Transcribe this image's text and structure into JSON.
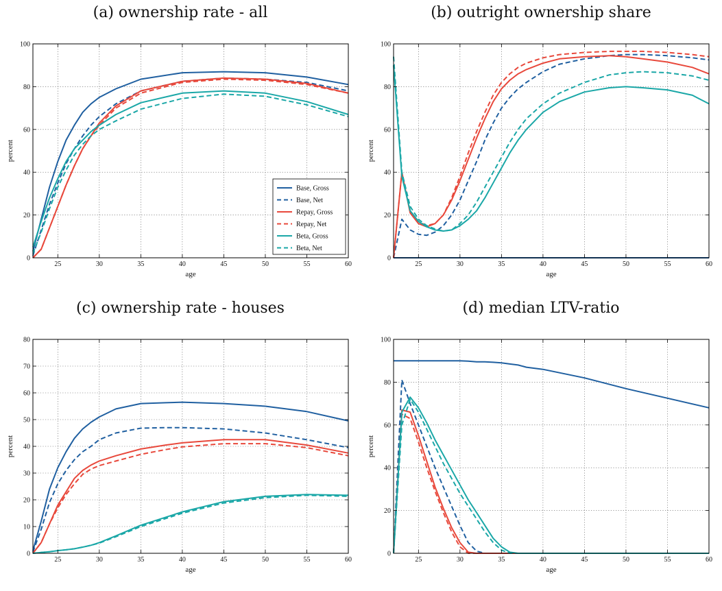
{
  "colors": {
    "base": "#1f5fa0",
    "repay": "#e8483b",
    "beta": "#1aa7a7"
  },
  "legend": [
    {
      "label": "Base, Gross",
      "color": "#1f5fa0",
      "dash": false
    },
    {
      "label": "Base, Net",
      "color": "#1f5fa0",
      "dash": true
    },
    {
      "label": "Repay, Gross",
      "color": "#e8483b",
      "dash": false
    },
    {
      "label": "Repay, Net",
      "color": "#e8483b",
      "dash": true
    },
    {
      "label": "Beta, Gross",
      "color": "#1aa7a7",
      "dash": false
    },
    {
      "label": "Beta, Net",
      "color": "#1aa7a7",
      "dash": true
    }
  ],
  "chart_data": [
    {
      "type": "line",
      "title": "(a) ownership rate - all",
      "xlabel": "age",
      "ylabel": "percent",
      "xlim": [
        22,
        60
      ],
      "ylim": [
        0,
        100
      ],
      "xticks": [
        25,
        30,
        35,
        40,
        45,
        50,
        55,
        60
      ],
      "yticks": [
        0,
        20,
        40,
        60,
        80,
        100
      ],
      "grid": true,
      "legend_position": "lower-right",
      "x": [
        22,
        23,
        24,
        25,
        26,
        27,
        28,
        29,
        30,
        32,
        35,
        40,
        45,
        50,
        55,
        60
      ],
      "series": [
        {
          "name": "Base, Gross",
          "color": "#1f5fa0",
          "dash": false,
          "values": [
            3,
            18,
            33,
            45,
            55,
            62,
            68,
            72,
            75,
            79,
            83.5,
            86.5,
            87,
            86.5,
            84.5,
            81
          ]
        },
        {
          "name": "Base, Net",
          "color": "#1f5fa0",
          "dash": true,
          "values": [
            1,
            13,
            25,
            35,
            44,
            51,
            57,
            62,
            66,
            72,
            78,
            82.5,
            84,
            83.5,
            82,
            78
          ]
        },
        {
          "name": "Repay, Gross",
          "color": "#e8483b",
          "dash": false,
          "values": [
            0,
            4,
            14,
            24,
            34,
            43,
            51,
            57,
            63,
            71,
            78,
            82.5,
            84,
            83.5,
            81.5,
            77
          ]
        },
        {
          "name": "Repay, Net",
          "color": "#e8483b",
          "dash": true,
          "values": [
            0,
            4,
            14,
            24,
            34,
            43,
            51,
            57,
            62,
            70,
            77,
            82,
            83.5,
            83,
            81,
            77
          ]
        },
        {
          "name": "Beta, Gross",
          "color": "#1aa7a7",
          "dash": false,
          "values": [
            5,
            17,
            28,
            37,
            45,
            51,
            55,
            59,
            62,
            67,
            72.5,
            77,
            78,
            77,
            73,
            67
          ]
        },
        {
          "name": "Beta, Net",
          "color": "#1aa7a7",
          "dash": true,
          "values": [
            2,
            12,
            23,
            33,
            41,
            48,
            53,
            57,
            60,
            64,
            69.5,
            74.5,
            76.5,
            75.5,
            71.5,
            66
          ]
        }
      ]
    },
    {
      "type": "line",
      "title": "(b) outright ownership share",
      "xlabel": "age",
      "ylabel": "percent",
      "xlim": [
        22,
        60
      ],
      "ylim": [
        0,
        100
      ],
      "xticks": [
        25,
        30,
        35,
        40,
        45,
        50,
        55,
        60
      ],
      "yticks": [
        0,
        20,
        40,
        60,
        80,
        100
      ],
      "grid": true,
      "legend_position": "none",
      "x": [
        22,
        23,
        24,
        25,
        26,
        27,
        28,
        29,
        30,
        31,
        32,
        33,
        34,
        35,
        36,
        37,
        38,
        40,
        42,
        45,
        48,
        50,
        52,
        55,
        58,
        60
      ],
      "series": [
        {
          "name": "Base, Gross",
          "color": "#1f5fa0",
          "dash": false,
          "values": [
            0,
            0,
            0,
            0,
            0,
            0,
            0,
            0,
            0,
            0,
            0,
            0,
            0,
            0,
            0,
            0,
            0,
            0,
            0,
            0,
            0,
            0,
            0,
            0,
            0,
            0
          ]
        },
        {
          "name": "Base, Net",
          "color": "#1f5fa0",
          "dash": true,
          "values": [
            0,
            18,
            13,
            11,
            10.5,
            12,
            15,
            20,
            27,
            36,
            45,
            55,
            63,
            70,
            75,
            79,
            82,
            87,
            90.5,
            93,
            94.5,
            95,
            95,
            94.5,
            93.5,
            92.5
          ]
        },
        {
          "name": "Repay, Gross",
          "color": "#e8483b",
          "dash": false,
          "values": [
            0,
            40,
            21,
            16,
            14.5,
            16,
            20,
            27,
            36,
            46,
            56,
            65,
            73,
            79,
            83,
            86,
            88,
            91,
            93,
            94,
            94.5,
            94,
            93,
            91.5,
            89,
            86
          ]
        },
        {
          "name": "Repay, Net",
          "color": "#e8483b",
          "dash": true,
          "values": [
            0,
            40,
            22,
            17,
            15,
            16,
            20,
            28,
            38,
            49,
            59,
            68,
            76,
            82,
            86,
            89,
            91,
            93.5,
            95,
            96,
            96.5,
            96.5,
            96.5,
            96,
            95,
            94
          ]
        },
        {
          "name": "Beta, Gross",
          "color": "#1aa7a7",
          "dash": false,
          "values": [
            90,
            38,
            22,
            17,
            14.5,
            13,
            12.5,
            13,
            15,
            18,
            22,
            28,
            35,
            42,
            49,
            55,
            60,
            68,
            73,
            77.5,
            79.5,
            80,
            79.5,
            78.5,
            76,
            72
          ]
        },
        {
          "name": "Beta, Net",
          "color": "#1aa7a7",
          "dash": true,
          "values": [
            94,
            40,
            24,
            18,
            15,
            13.5,
            12.5,
            13,
            16,
            20,
            26,
            33,
            40,
            47,
            54,
            60,
            65,
            72,
            77,
            82,
            85.5,
            86.5,
            87,
            86.5,
            85,
            83
          ]
        }
      ]
    },
    {
      "type": "line",
      "title": "(c) ownership rate - houses",
      "xlabel": "age",
      "ylabel": "percent",
      "xlim": [
        22,
        60
      ],
      "ylim": [
        0,
        80
      ],
      "xticks": [
        25,
        30,
        35,
        40,
        45,
        50,
        55,
        60
      ],
      "yticks": [
        0,
        10,
        20,
        30,
        40,
        50,
        60,
        70,
        80
      ],
      "grid": true,
      "legend_position": "none",
      "x": [
        22,
        23,
        24,
        25,
        26,
        27,
        28,
        29,
        30,
        32,
        35,
        38,
        40,
        45,
        50,
        55,
        60
      ],
      "series": [
        {
          "name": "Base, Gross",
          "color": "#1f5fa0",
          "dash": false,
          "values": [
            1,
            12,
            24,
            32,
            38,
            43,
            46.5,
            49,
            51,
            54,
            56,
            56.3,
            56.5,
            56,
            55,
            53,
            49.5
          ]
        },
        {
          "name": "Base, Net",
          "color": "#1f5fa0",
          "dash": true,
          "values": [
            0.5,
            9,
            19,
            26,
            31,
            35,
            38,
            40,
            42.5,
            45,
            46.8,
            47,
            47,
            46.5,
            45,
            42.5,
            39.5
          ]
        },
        {
          "name": "Repay, Gross",
          "color": "#e8483b",
          "dash": false,
          "values": [
            0,
            4,
            11,
            18,
            23,
            28,
            31,
            33,
            34.5,
            36.5,
            39,
            40.5,
            41.3,
            42.5,
            42.5,
            40.5,
            37.5
          ]
        },
        {
          "name": "Repay, Net",
          "color": "#e8483b",
          "dash": true,
          "values": [
            0,
            4,
            11,
            17,
            22,
            26,
            29.5,
            31.5,
            32.8,
            34.5,
            37,
            38.8,
            39.8,
            41,
            41,
            39.5,
            36.5
          ]
        },
        {
          "name": "Beta, Gross",
          "color": "#1aa7a7",
          "dash": false,
          "values": [
            0,
            0.3,
            0.6,
            1,
            1.3,
            1.7,
            2.3,
            3,
            4,
            6.5,
            10.5,
            13.5,
            15.5,
            19.3,
            21.3,
            22,
            21.7
          ]
        },
        {
          "name": "Beta, Net",
          "color": "#1aa7a7",
          "dash": true,
          "values": [
            0,
            0.3,
            0.6,
            1,
            1.3,
            1.7,
            2.3,
            3,
            3.8,
            6.2,
            10,
            13,
            15,
            18.8,
            20.8,
            21.7,
            21.3
          ]
        }
      ]
    },
    {
      "type": "line",
      "title": "(d) median LTV-ratio",
      "xlabel": "age",
      "ylabel": "percent",
      "xlim": [
        22,
        60
      ],
      "ylim": [
        0,
        100
      ],
      "xticks": [
        25,
        30,
        35,
        40,
        45,
        50,
        55,
        60
      ],
      "yticks": [
        0,
        20,
        40,
        60,
        80,
        100
      ],
      "grid": true,
      "legend_position": "none",
      "x": [
        22,
        23,
        24,
        25,
        26,
        27,
        28,
        29,
        30,
        31,
        32,
        33,
        34,
        35,
        36,
        37,
        38,
        40,
        45,
        50,
        55,
        60
      ],
      "series": [
        {
          "name": "Base, Gross",
          "color": "#1f5fa0",
          "dash": false,
          "values": [
            90,
            90,
            90,
            90,
            90,
            90,
            90,
            90,
            90,
            89.8,
            89.5,
            89.5,
            89.3,
            89,
            88.5,
            88,
            87,
            86,
            82,
            77,
            72.5,
            68
          ]
        },
        {
          "name": "Base, Net",
          "color": "#1f5fa0",
          "dash": true,
          "values": [
            0,
            81,
            70,
            60,
            50,
            40,
            31,
            22,
            13,
            5,
            1,
            0,
            0,
            0,
            0,
            0,
            0,
            0,
            0,
            0,
            0,
            0
          ]
        },
        {
          "name": "Repay, Gross",
          "color": "#e8483b",
          "dash": false,
          "values": [
            0,
            67,
            66,
            55,
            43,
            31,
            21,
            12,
            5,
            0.5,
            0,
            0,
            0,
            0,
            0,
            0,
            0,
            0,
            0,
            0,
            0,
            0
          ]
        },
        {
          "name": "Repay, Net",
          "color": "#e8483b",
          "dash": true,
          "values": [
            0,
            65,
            63,
            52,
            40,
            29,
            19,
            10,
            3,
            0,
            0,
            0,
            0,
            0,
            0,
            0,
            0,
            0,
            0,
            0,
            0,
            0
          ]
        },
        {
          "name": "Beta, Gross",
          "color": "#1aa7a7",
          "dash": false,
          "values": [
            0,
            66,
            73,
            68,
            61,
            53,
            46,
            39,
            32,
            25,
            19,
            13,
            7,
            3,
            0.5,
            0,
            0,
            0,
            0,
            0,
            0,
            0
          ]
        },
        {
          "name": "Beta, Net",
          "color": "#1aa7a7",
          "dash": true,
          "values": [
            0,
            60,
            72,
            66,
            58,
            50,
            42,
            35,
            28,
            22,
            16,
            10,
            5,
            1.5,
            0,
            0,
            0,
            0,
            0,
            0,
            0,
            0
          ]
        }
      ]
    }
  ]
}
